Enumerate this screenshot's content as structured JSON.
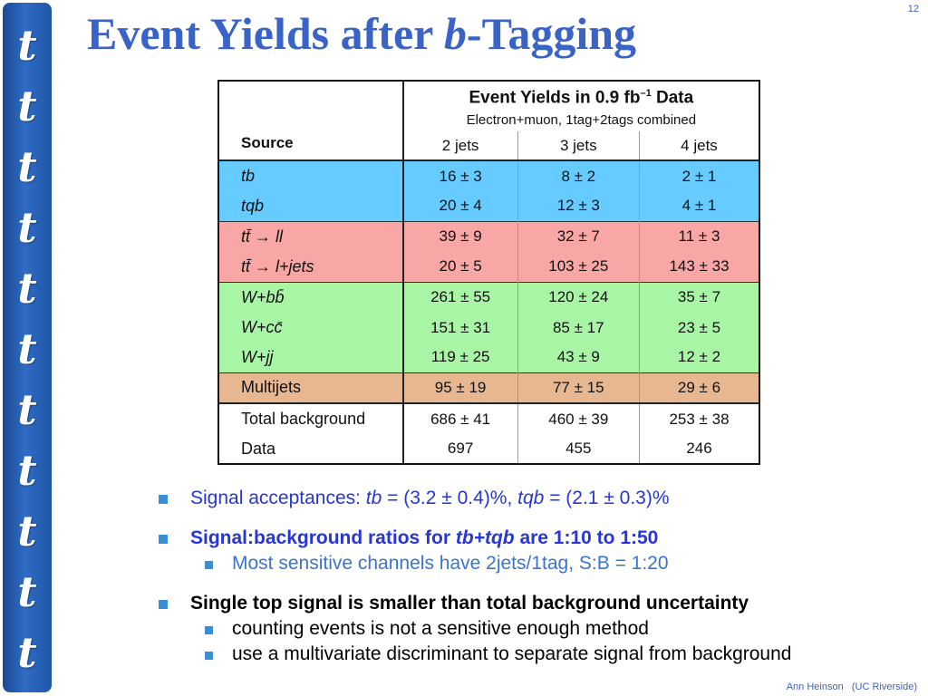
{
  "slide_number": "12",
  "title": {
    "prefix": "Event Yields after ",
    "italic": "b",
    "suffix": "-Tagging"
  },
  "side_strip": {
    "glyph": "t",
    "count": 11
  },
  "table": {
    "header": {
      "main": "Event Yields in 0.9 fb",
      "main_sup": "–1",
      "main_suffix": " Data",
      "sub": "Electron+muon, 1tag+2tags combined",
      "source_label": "Source",
      "columns": [
        "2 jets",
        "3 jets",
        "4 jets"
      ]
    },
    "groups": [
      {
        "color": "#66ccff",
        "rows": [
          {
            "source": "tb",
            "values": [
              "16 ± 3",
              "8 ± 2",
              "2 ± 1"
            ]
          },
          {
            "source": "tqb",
            "values": [
              "20 ± 4",
              "12 ± 3",
              "4 ± 1"
            ]
          }
        ]
      },
      {
        "color": "#f9a6a6",
        "rows": [
          {
            "source": "tt̄ → ll",
            "values": [
              "39 ± 9",
              "32 ± 7",
              "11 ± 3"
            ]
          },
          {
            "source": "tt̄ → l+jets",
            "values": [
              "20 ± 5",
              "103 ± 25",
              "143 ± 33"
            ]
          }
        ]
      },
      {
        "color": "#a9f5a6",
        "rows": [
          {
            "source": "W+bb̄",
            "values": [
              "261 ± 55",
              "120 ± 24",
              "35 ± 7"
            ]
          },
          {
            "source": "W+cc̄",
            "values": [
              "151 ± 31",
              "85 ± 17",
              "23 ± 5"
            ]
          },
          {
            "source": "W+jj",
            "values": [
              "119 ± 25",
              "43 ± 9",
              "12 ± 2"
            ]
          }
        ]
      },
      {
        "color": "#e7b792",
        "rows": [
          {
            "source": "Multijets",
            "values": [
              "95 ± 19",
              "77 ± 15",
              "29 ± 6"
            ]
          }
        ]
      }
    ],
    "totals": [
      {
        "source": "Total background",
        "values": [
          "686 ± 41",
          "460 ± 39",
          "253 ± 38"
        ]
      },
      {
        "source": "Data",
        "values": [
          "697",
          "455",
          "246"
        ]
      }
    ]
  },
  "bullets": {
    "b1": {
      "text": "Signal acceptances: ",
      "tb": "tb",
      "tb_val": " = (3.2 ± 0.4)%, ",
      "tqb": "tqb",
      "tqb_val": " = (2.1 ± 0.3)%"
    },
    "b2": {
      "pre": "Signal:background ratios for ",
      "it": "tb+tqb",
      "post": " are 1:10 to 1:50"
    },
    "b2_sub": "Most sensitive channels have 2jets/1tag, S:B = 1:20",
    "b3": "Single top signal is smaller than total background uncertainty",
    "b3_sub": [
      "counting events is not a sensitive enough method",
      "use a multivariate discriminant to separate signal from background"
    ]
  },
  "footer": {
    "author": "Ann Heinson",
    "affiliation": "(UC Riverside)"
  }
}
